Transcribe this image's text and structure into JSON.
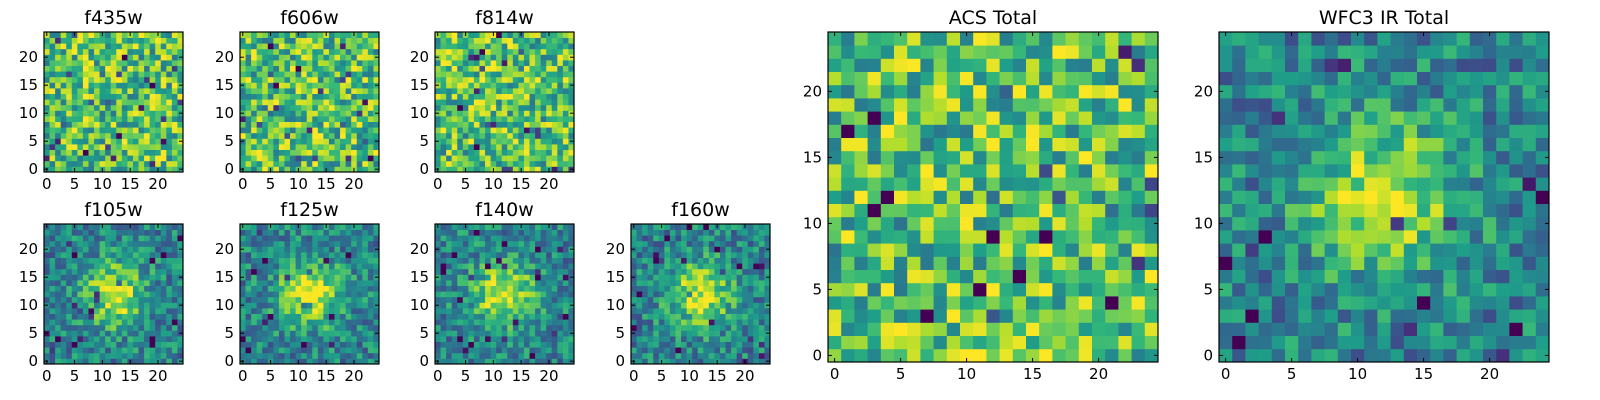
{
  "chart_data": [
    {
      "type": "heatmap",
      "title": "f435w",
      "grid_size": 25,
      "xticks": [
        0,
        5,
        10,
        15,
        20
      ],
      "yticks": [
        0,
        5,
        10,
        15,
        20
      ],
      "colormap": "viridis",
      "pattern": "noise"
    },
    {
      "type": "heatmap",
      "title": "f606w",
      "grid_size": 25,
      "xticks": [
        0,
        5,
        10,
        15,
        20
      ],
      "yticks": [
        0,
        5,
        10,
        15,
        20
      ],
      "colormap": "viridis",
      "pattern": "noise"
    },
    {
      "type": "heatmap",
      "title": "f814w",
      "grid_size": 25,
      "xticks": [
        0,
        5,
        10,
        15,
        20
      ],
      "yticks": [
        0,
        5,
        10,
        15,
        20
      ],
      "colormap": "viridis",
      "pattern": "noise"
    },
    {
      "type": "heatmap",
      "title": "f105w",
      "grid_size": 25,
      "xticks": [
        0,
        5,
        10,
        15,
        20
      ],
      "yticks": [
        0,
        5,
        10,
        15,
        20
      ],
      "colormap": "viridis",
      "pattern": "source",
      "source_center": [
        12,
        12
      ]
    },
    {
      "type": "heatmap",
      "title": "f125w",
      "grid_size": 25,
      "xticks": [
        0,
        5,
        10,
        15,
        20
      ],
      "yticks": [
        0,
        5,
        10,
        15,
        20
      ],
      "colormap": "viridis",
      "pattern": "source",
      "source_center": [
        12,
        12
      ]
    },
    {
      "type": "heatmap",
      "title": "f140w",
      "grid_size": 25,
      "xticks": [
        0,
        5,
        10,
        15,
        20
      ],
      "yticks": [
        0,
        5,
        10,
        15,
        20
      ],
      "colormap": "viridis",
      "pattern": "source",
      "source_center": [
        12,
        12
      ]
    },
    {
      "type": "heatmap",
      "title": "f160w",
      "grid_size": 25,
      "xticks": [
        0,
        5,
        10,
        15,
        20
      ],
      "yticks": [
        0,
        5,
        10,
        15,
        20
      ],
      "colormap": "viridis",
      "pattern": "source",
      "source_center": [
        12,
        12
      ]
    },
    {
      "type": "heatmap",
      "title": "ACS Total",
      "grid_size": 25,
      "xticks": [
        0,
        5,
        10,
        15,
        20
      ],
      "yticks": [
        0,
        5,
        10,
        15,
        20
      ],
      "colormap": "viridis",
      "pattern": "noise"
    },
    {
      "type": "heatmap",
      "title": "WFC3 IR Total",
      "grid_size": 25,
      "xticks": [
        0,
        5,
        10,
        15,
        20
      ],
      "yticks": [
        0,
        5,
        10,
        15,
        20
      ],
      "colormap": "viridis",
      "pattern": "source",
      "source_center": [
        12,
        12
      ]
    }
  ]
}
